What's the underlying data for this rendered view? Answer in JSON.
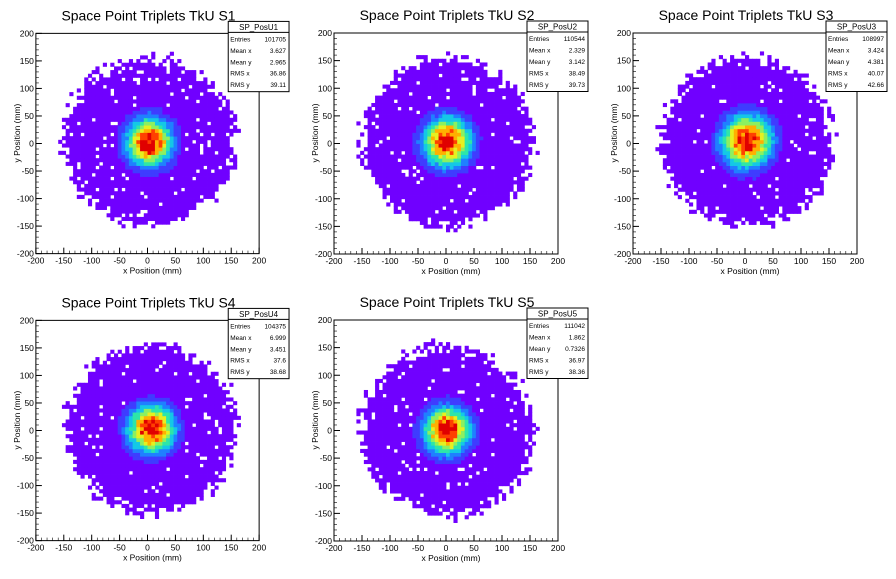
{
  "chart_data": [
    {
      "type": "heatmap",
      "title": "Space Point Triplets TkU S1",
      "xlabel": "x Position (mm)",
      "ylabel": "y Position (mm)",
      "xlim": [
        -200,
        200
      ],
      "ylim": [
        -200,
        200
      ],
      "xticks": [
        -200,
        -150,
        -100,
        -50,
        0,
        50,
        100,
        150,
        200
      ],
      "yticks": [
        -200,
        -150,
        -100,
        -50,
        0,
        50,
        100,
        150,
        200
      ],
      "stats": {
        "name": "SP_PosU1",
        "rows": [
          {
            "label": "Entries",
            "value": "101705"
          },
          {
            "label": "Mean x",
            "value": "3.627"
          },
          {
            "label": "Mean y",
            "value": "2.965"
          },
          {
            "label": "RMS x",
            "value": "36.86"
          },
          {
            "label": "RMS y",
            "value": "39.11"
          }
        ]
      },
      "distribution": {
        "center_x": 3.627,
        "center_y": 2.965,
        "rms_x": 36.86,
        "rms_y": 39.11
      }
    },
    {
      "type": "heatmap",
      "title": "Space Point Triplets TkU S2",
      "xlabel": "x Position (mm)",
      "ylabel": "y Position (mm)",
      "xlim": [
        -200,
        200
      ],
      "ylim": [
        -200,
        200
      ],
      "xticks": [
        -200,
        -150,
        -100,
        -50,
        0,
        50,
        100,
        150,
        200
      ],
      "yticks": [
        -200,
        -150,
        -100,
        -50,
        0,
        50,
        100,
        150,
        200
      ],
      "stats": {
        "name": "SP_PosU2",
        "rows": [
          {
            "label": "Entries",
            "value": "110544"
          },
          {
            "label": "Mean x",
            "value": "2.329"
          },
          {
            "label": "Mean y",
            "value": "3.142"
          },
          {
            "label": "RMS x",
            "value": "38.49"
          },
          {
            "label": "RMS y",
            "value": "39.73"
          }
        ]
      },
      "distribution": {
        "center_x": 2.329,
        "center_y": 3.142,
        "rms_x": 38.49,
        "rms_y": 39.73
      }
    },
    {
      "type": "heatmap",
      "title": "Space Point Triplets TkU S3",
      "xlabel": "x Position (mm)",
      "ylabel": "y Position (mm)",
      "xlim": [
        -200,
        200
      ],
      "ylim": [
        -200,
        200
      ],
      "xticks": [
        -200,
        -150,
        -100,
        -50,
        0,
        50,
        100,
        150,
        200
      ],
      "yticks": [
        -200,
        -150,
        -100,
        -50,
        0,
        50,
        100,
        150,
        200
      ],
      "stats": {
        "name": "SP_PosU3",
        "rows": [
          {
            "label": "Entries",
            "value": "108997"
          },
          {
            "label": "Mean x",
            "value": "3.424"
          },
          {
            "label": "Mean y",
            "value": "4.381"
          },
          {
            "label": "RMS x",
            "value": "40.07"
          },
          {
            "label": "RMS y",
            "value": "42.66"
          }
        ]
      },
      "distribution": {
        "center_x": 3.424,
        "center_y": 4.381,
        "rms_x": 40.07,
        "rms_y": 42.66
      }
    },
    {
      "type": "heatmap",
      "title": "Space Point Triplets TkU S4",
      "xlabel": "x Position (mm)",
      "ylabel": "y Position (mm)",
      "xlim": [
        -200,
        200
      ],
      "ylim": [
        -200,
        200
      ],
      "xticks": [
        -200,
        -150,
        -100,
        -50,
        0,
        50,
        100,
        150,
        200
      ],
      "yticks": [
        -200,
        -150,
        -100,
        -50,
        0,
        50,
        100,
        150,
        200
      ],
      "stats": {
        "name": "SP_PosU4",
        "rows": [
          {
            "label": "Entries",
            "value": "104375"
          },
          {
            "label": "Mean x",
            "value": "6.999"
          },
          {
            "label": "Mean y",
            "value": "3.451"
          },
          {
            "label": "RMS x",
            "value": "37.6"
          },
          {
            "label": "RMS y",
            "value": "38.68"
          }
        ]
      },
      "distribution": {
        "center_x": 6.999,
        "center_y": 3.451,
        "rms_x": 37.6,
        "rms_y": 38.68
      }
    },
    {
      "type": "heatmap",
      "title": "Space Point Triplets TkU S5",
      "xlabel": "x Position (mm)",
      "ylabel": "y Position (mm)",
      "xlim": [
        -200,
        200
      ],
      "ylim": [
        -200,
        200
      ],
      "xticks": [
        -200,
        -150,
        -100,
        -50,
        0,
        50,
        100,
        150,
        200
      ],
      "yticks": [
        -200,
        -150,
        -100,
        -50,
        0,
        50,
        100,
        150,
        200
      ],
      "stats": {
        "name": "SP_PosU5",
        "rows": [
          {
            "label": "Entries",
            "value": "111042"
          },
          {
            "label": "Mean x",
            "value": "1.862"
          },
          {
            "label": "Mean y",
            "value": "0.7326"
          },
          {
            "label": "RMS x",
            "value": "36.97"
          },
          {
            "label": "RMS y",
            "value": "38.36"
          }
        ]
      },
      "distribution": {
        "center_x": 1.862,
        "center_y": 0.7326,
        "rms_x": 36.97,
        "rms_y": 38.36
      }
    }
  ],
  "colors": {
    "palette": [
      "#7000ff",
      "#3f3cff",
      "#1f80ff",
      "#14c8e6",
      "#2ee6a8",
      "#8cf060",
      "#e6f020",
      "#ffb000",
      "#ff4000",
      "#e00000"
    ]
  }
}
